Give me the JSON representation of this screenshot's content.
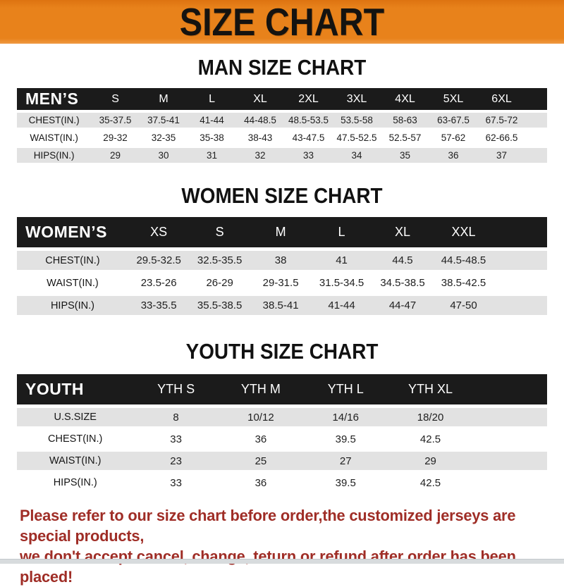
{
  "banner": {
    "title": "SIZE CHART"
  },
  "colors": {
    "banner_orange": "#E8821B",
    "header_black": "#1B1B1B",
    "row_gray": "#E2E2E2",
    "disclaimer_red": "#9F2D26"
  },
  "tables": [
    {
      "title": "MAN SIZE CHART",
      "header_label": "MEN’S",
      "columns": [
        "S",
        "M",
        "L",
        "XL",
        "2XL",
        "3XL",
        "4XL",
        "5XL",
        "6XL"
      ],
      "rows": [
        {
          "label": "CHEST(IN.)",
          "values": [
            "35-37.5",
            "37.5-41",
            "41-44",
            "44-48.5",
            "48.5-53.5",
            "53.5-58",
            "58-63",
            "63-67.5",
            "67.5-72"
          ]
        },
        {
          "label": "WAIST(IN.)",
          "values": [
            "29-32",
            "32-35",
            "35-38",
            "38-43",
            "43-47.5",
            "47.5-52.5",
            "52.5-57",
            "57-62",
            "62-66.5"
          ]
        },
        {
          "label": "HIPS(IN.)",
          "values": [
            "29",
            "30",
            "31",
            "32",
            "33",
            "34",
            "35",
            "36",
            "37"
          ]
        }
      ]
    },
    {
      "title": "WOMEN SIZE CHART",
      "header_label": "WOMEN’S",
      "columns": [
        "XS",
        "S",
        "M",
        "L",
        "XL",
        "XXL"
      ],
      "rows": [
        {
          "label": "CHEST(IN.)",
          "values": [
            "29.5-32.5",
            "32.5-35.5",
            "38",
            "41",
            "44.5",
            "44.5-48.5"
          ]
        },
        {
          "label": "WAIST(IN.)",
          "values": [
            "23.5-26",
            "26-29",
            "29-31.5",
            "31.5-34.5",
            "34.5-38.5",
            "38.5-42.5"
          ]
        },
        {
          "label": "HIPS(IN.)",
          "values": [
            "33-35.5",
            "35.5-38.5",
            "38.5-41",
            "41-44",
            "44-47",
            "47-50"
          ]
        }
      ]
    },
    {
      "title": "YOUTH SIZE CHART",
      "header_label": "YOUTH",
      "columns": [
        "YTH S",
        "YTH M",
        "YTH L",
        "YTH XL"
      ],
      "rows": [
        {
          "label": "U.S.SIZE",
          "values": [
            "8",
            "10/12",
            "14/16",
            "18/20"
          ]
        },
        {
          "label": "CHEST(IN.)",
          "values": [
            "33",
            "36",
            "39.5",
            "42.5"
          ]
        },
        {
          "label": "WAIST(IN.)",
          "values": [
            "23",
            "25",
            "27",
            "29"
          ]
        },
        {
          "label": "HIPS(IN.)",
          "values": [
            "33",
            "36",
            "39.5",
            "42.5"
          ]
        }
      ]
    }
  ],
  "disclaimer": {
    "line1": "Please refer to our size chart before order,the customized jerseys are special products,",
    "line2": "we don't accept cancel, change, teturn or refund after order has been placed!"
  }
}
